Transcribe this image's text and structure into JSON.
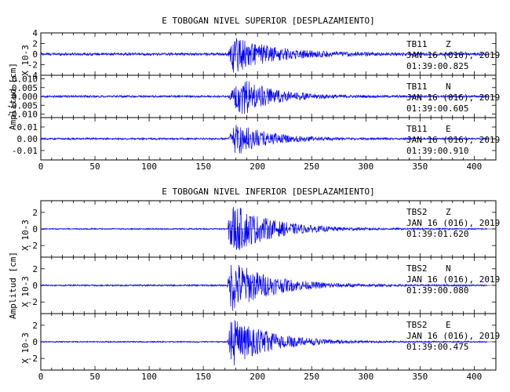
{
  "chart_data": [
    {
      "type": "line",
      "title": "E TOBOGAN NIVEL SUPERIOR [DESPLAZAMIENTO]",
      "ylabel": "Amplitud [cm]",
      "xlim": [
        0,
        420
      ],
      "xticks": [
        0,
        50,
        100,
        150,
        200,
        250,
        300,
        350,
        400
      ],
      "series_color": "#0000ff",
      "traces": [
        {
          "station": "TB11",
          "component": "Z",
          "date": "JAN 16 (016), 2019",
          "time": "01:39:00.825",
          "multiplier": "X 10-3",
          "ylim": [
            -4,
            4
          ],
          "yticks": [
            4,
            2,
            0,
            -2,
            -4
          ],
          "yticklabels": [
            "4",
            "2",
            "0",
            "-2",
            "-4"
          ],
          "event_onset": 173,
          "peak_time": 177,
          "peak_amplitude": 3.5,
          "coda_end": 330,
          "noise_level": 0.25
        },
        {
          "station": "TB11",
          "component": "N",
          "date": "JAN 16 (016), 2019",
          "time": "01:39:00.605",
          "multiplier": "",
          "ylim": [
            -0.012,
            0.012
          ],
          "yticks": [
            0.01,
            0.005,
            0.0,
            -0.005,
            -0.01
          ],
          "yticklabels": [
            "0.010",
            "0.005",
            "0.000",
            "-0.005",
            "-0.010"
          ],
          "event_onset": 173,
          "peak_time": 185,
          "peak_amplitude": 0.011,
          "coda_end": 300,
          "noise_level": 0.0006
        },
        {
          "station": "TB11",
          "component": "E",
          "date": "JAN 16 (016), 2019",
          "time": "01:39:00.910",
          "multiplier": "",
          "ylim": [
            -0.018,
            0.018
          ],
          "yticks": [
            0.01,
            0.0,
            -0.01
          ],
          "yticklabels": [
            "0.01",
            "0.00",
            "-0.01"
          ],
          "event_onset": 173,
          "peak_time": 180,
          "peak_amplitude": 0.014,
          "coda_end": 300,
          "noise_level": 0.0008
        }
      ]
    },
    {
      "type": "line",
      "title": "E TOBOGAN NIVEL INFERIOR [DESPLAZAMIENTO]",
      "ylabel": "Amplitud [cm]",
      "xlim": [
        0,
        420
      ],
      "xticks": [
        0,
        50,
        100,
        150,
        200,
        250,
        300,
        350,
        400
      ],
      "series_color": "#0000ff",
      "traces": [
        {
          "station": "TBS2",
          "component": "Z",
          "date": "JAN 16 (016), 2019",
          "time": "01:39:01.620",
          "multiplier": "X 10-3",
          "ylim": [
            -3.4,
            3.4
          ],
          "yticks": [
            2,
            0,
            -2
          ],
          "yticklabels": [
            "2",
            "0",
            "-2"
          ],
          "event_onset": 172,
          "peak_time": 176,
          "peak_amplitude": 3.2,
          "coda_end": 320,
          "noise_level": 0.08
        },
        {
          "station": "TBS2",
          "component": "N",
          "date": "JAN 16 (016), 2019",
          "time": "01:39:00.080",
          "multiplier": "X 10-3",
          "ylim": [
            -3.4,
            3.4
          ],
          "yticks": [
            2,
            0,
            -2
          ],
          "yticklabels": [
            "2",
            "0",
            "-2"
          ],
          "event_onset": 172,
          "peak_time": 176,
          "peak_amplitude": 3.2,
          "coda_end": 320,
          "noise_level": 0.1
        },
        {
          "station": "TBS2",
          "component": "E",
          "date": "JAN 16 (016), 2019",
          "time": "01:39:00.475",
          "multiplier": "X 10-3",
          "ylim": [
            -3.4,
            3.4
          ],
          "yticks": [
            2,
            0,
            -2
          ],
          "yticklabels": [
            "2",
            "0",
            "-2"
          ],
          "event_onset": 172,
          "peak_time": 176,
          "peak_amplitude": 3.0,
          "coda_end": 320,
          "noise_level": 0.08
        }
      ]
    }
  ]
}
